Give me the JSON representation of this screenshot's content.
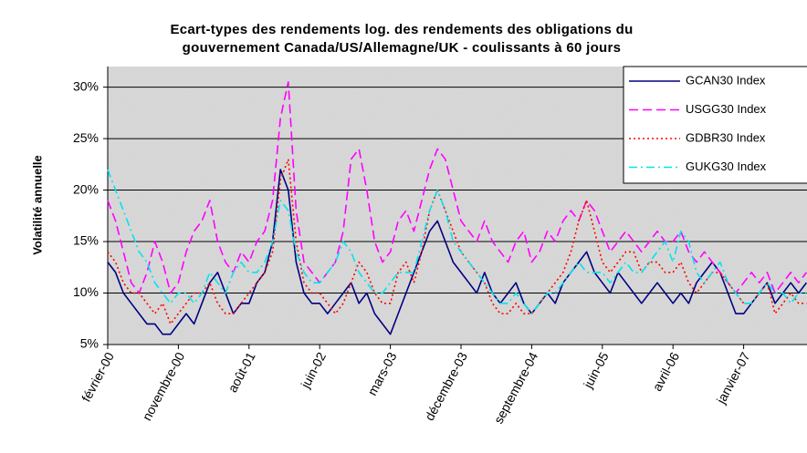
{
  "chart_data": {
    "type": "line",
    "title": [
      "Ecart-types des rendements log. des rendements des obligations du",
      "gouvernement  Canada/US/Allemagne/UK - coulissants à 60 jours"
    ],
    "y_label": "Volatilité annuelle",
    "categories": [
      "février-00",
      null,
      null,
      null,
      null,
      null,
      null,
      null,
      null,
      "novembre-00",
      null,
      null,
      null,
      null,
      null,
      null,
      null,
      null,
      "août-01",
      null,
      null,
      null,
      null,
      null,
      null,
      null,
      null,
      "juin-02",
      null,
      null,
      null,
      null,
      null,
      null,
      null,
      null,
      "mars-03",
      null,
      null,
      null,
      null,
      null,
      null,
      null,
      null,
      "décembre-03",
      null,
      null,
      null,
      null,
      null,
      null,
      null,
      null,
      "septembre-04",
      null,
      null,
      null,
      null,
      null,
      null,
      null,
      null,
      "juin-05",
      null,
      null,
      null,
      null,
      null,
      null,
      null,
      null,
      "avril-06",
      null,
      null,
      null,
      null,
      null,
      null,
      null,
      null,
      "janvier-07",
      null,
      null,
      null,
      null,
      null,
      null,
      null,
      null
    ],
    "series": [
      {
        "name": "GCAN30 Index",
        "color": "#000080",
        "dash": "solid",
        "values": [
          13,
          12,
          10,
          9,
          8,
          7,
          7,
          6,
          6,
          7,
          8,
          7,
          9,
          11,
          12,
          10,
          8,
          9,
          9,
          11,
          12,
          15,
          22,
          20,
          13,
          10,
          9,
          9,
          8,
          9,
          10,
          11,
          9,
          10,
          8,
          7,
          6,
          8,
          10,
          12,
          14,
          16,
          17,
          15,
          13,
          12,
          11,
          10,
          12,
          10,
          9,
          10,
          11,
          9,
          8,
          9,
          10,
          9,
          11,
          12,
          13,
          14,
          12,
          11,
          10,
          12,
          11,
          10,
          9,
          10,
          11,
          10,
          9,
          10,
          9,
          11,
          12,
          13,
          12,
          10,
          8,
          8,
          9,
          10,
          11,
          9,
          10,
          11,
          10,
          11
        ]
      },
      {
        "name": "USGG30 Index",
        "color": "#ff00ff",
        "dash": "dashed",
        "values": [
          19,
          17,
          14,
          11,
          10,
          12,
          15,
          13,
          10,
          11,
          14,
          16,
          17,
          19,
          15,
          13,
          12,
          14,
          13,
          15,
          16,
          19,
          27,
          30.5,
          18,
          13,
          12,
          11,
          12,
          13,
          16,
          23,
          24,
          20,
          15,
          13,
          14,
          17,
          18,
          16,
          19,
          22,
          24,
          23,
          20,
          17,
          16,
          15,
          17,
          15,
          14,
          13,
          15,
          16,
          13,
          14,
          16,
          15,
          17,
          18,
          17,
          19,
          18,
          16,
          14,
          15,
          16,
          15,
          14,
          15,
          16,
          15,
          15,
          16,
          14,
          13,
          14,
          13,
          12,
          11,
          10,
          11,
          12,
          11,
          12,
          10,
          11,
          12,
          11,
          12
        ]
      },
      {
        "name": "GDBR30 Index",
        "color": "#ff0000",
        "dash": "dotted",
        "values": [
          14,
          13,
          11,
          10,
          10,
          9,
          8,
          9,
          7,
          8,
          9,
          10,
          10,
          11,
          9,
          8,
          8,
          9,
          10,
          11,
          12,
          14,
          21,
          23,
          15,
          11,
          10,
          10,
          9,
          8,
          9,
          11,
          13,
          12,
          10,
          9,
          9,
          12,
          13,
          11,
          14,
          18,
          20,
          18,
          16,
          14,
          13,
          12,
          11,
          9,
          8,
          8,
          9,
          8,
          8,
          9,
          10,
          11,
          12,
          14,
          17,
          19,
          16,
          13,
          12,
          13,
          14,
          14,
          12,
          13,
          13,
          12,
          12,
          13,
          11,
          10,
          11,
          12,
          12,
          11,
          10,
          9,
          9,
          10,
          11,
          8,
          9,
          10,
          9,
          9
        ]
      },
      {
        "name": "GUKG30 Index",
        "color": "#00e5ee",
        "dash": "dashdot",
        "values": [
          22,
          20,
          18,
          16,
          14,
          13,
          11,
          10,
          9,
          10,
          10,
          9,
          10,
          12,
          11,
          10,
          12,
          13,
          12,
          12,
          13,
          15,
          19,
          18,
          14,
          12,
          11,
          11,
          12,
          13,
          15,
          14,
          12,
          11,
          10,
          10,
          11,
          12,
          12,
          12,
          15,
          18,
          20,
          18,
          15,
          14,
          13,
          12,
          11,
          10,
          9,
          9,
          10,
          9,
          8,
          9,
          10,
          10,
          11,
          12,
          13,
          12,
          12,
          12,
          11,
          12,
          13,
          12,
          12,
          13,
          14,
          15,
          13,
          16,
          15,
          12,
          11,
          12,
          13,
          11,
          10,
          9,
          9,
          10,
          11,
          10,
          10,
          9,
          10,
          10
        ]
      }
    ],
    "ylim": [
      5,
      32
    ],
    "yticks": [
      {
        "value": 5,
        "label": "5%"
      },
      {
        "value": 10,
        "label": "10%"
      },
      {
        "value": 15,
        "label": "15%"
      },
      {
        "value": 20,
        "label": "20%"
      },
      {
        "value": 25,
        "label": "25%"
      },
      {
        "value": 30,
        "label": "30%"
      }
    ],
    "grid": true,
    "legend": "top-right"
  }
}
